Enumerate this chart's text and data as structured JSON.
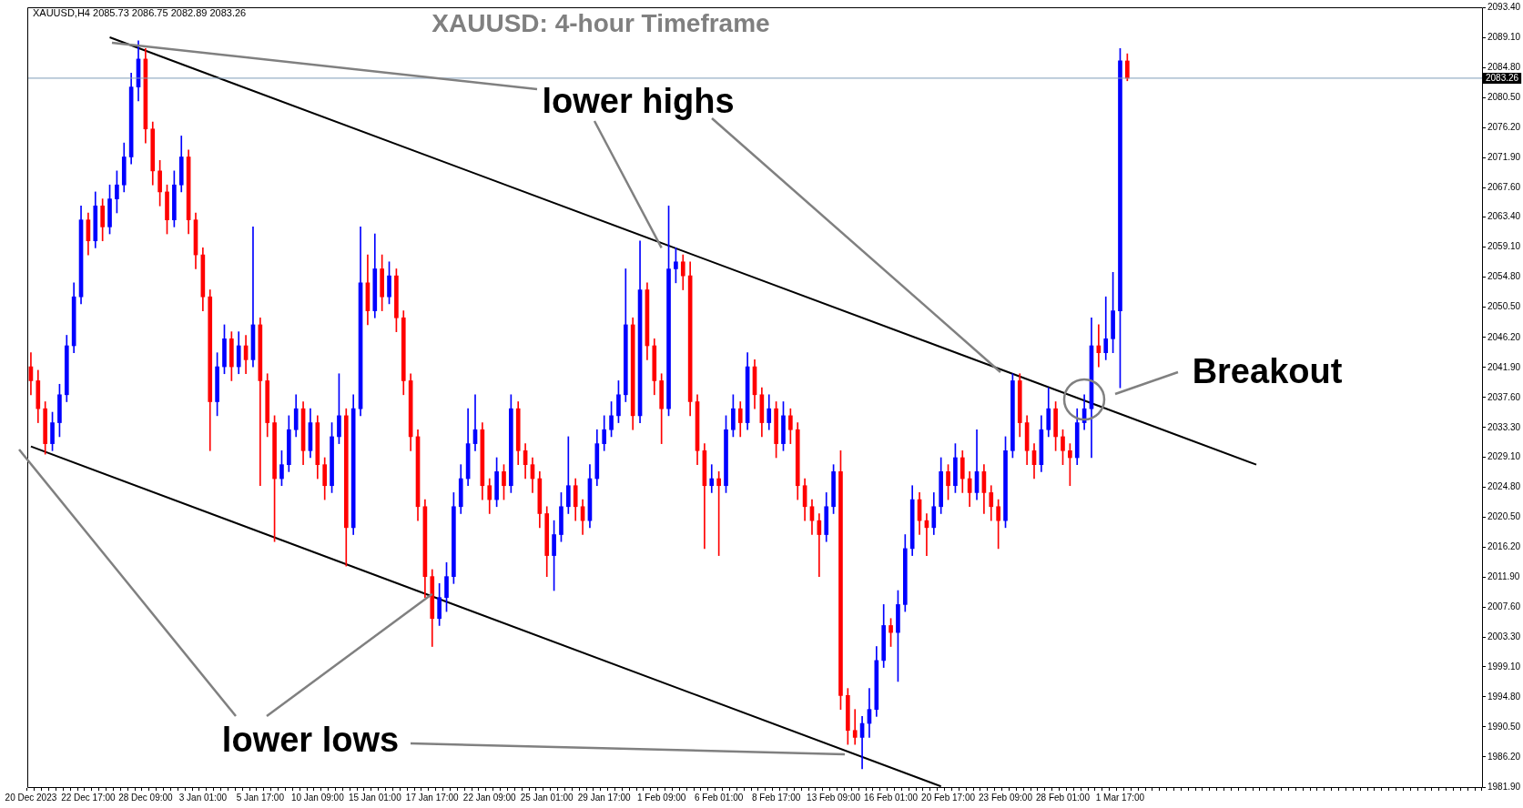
{
  "chart_data": {
    "type": "candlestick",
    "title": "XAUUSD: 4-hour Timeframe",
    "subtitle": "XAUUSD,H4  2085.73 2086.75 2082.89 2083.26",
    "annotations": [
      {
        "text": "lower highs",
        "x": "1 Feb 09:00",
        "y": 2059
      },
      {
        "text": "lower lows",
        "x": "17 Jan 17:00",
        "y": 2009.5
      },
      "Breakout"
    ],
    "categories": [
      "20 Dec 2023",
      null,
      null,
      null,
      null,
      null,
      null,
      null,
      "22 Dec 17:00",
      null,
      null,
      null,
      null,
      null,
      null,
      null,
      "28 Dec 09:00",
      null,
      null,
      null,
      null,
      null,
      null,
      null,
      "3 Jan 01:00",
      null,
      null,
      null,
      null,
      null,
      null,
      null,
      "5 Jan 17:00",
      null,
      null,
      null,
      null,
      null,
      null,
      null,
      "10 Jan 09:00",
      null,
      null,
      null,
      null,
      null,
      null,
      null,
      "15 Jan 01:00",
      null,
      null,
      null,
      null,
      null,
      null,
      null,
      "17 Jan 17:00",
      null,
      null,
      null,
      null,
      null,
      null,
      null,
      "22 Jan 09:00",
      null,
      null,
      null,
      null,
      null,
      null,
      null,
      "25 Jan 01:00",
      null,
      null,
      null,
      null,
      null,
      null,
      null,
      "29 Jan 17:00",
      null,
      null,
      null,
      null,
      null,
      null,
      null,
      "1 Feb 09:00",
      null,
      null,
      null,
      null,
      null,
      null,
      null,
      "6 Feb 01:00",
      null,
      null,
      null,
      null,
      null,
      null,
      null,
      "8 Feb 17:00",
      null,
      null,
      null,
      null,
      null,
      null,
      null,
      "13 Feb 09:00",
      null,
      null,
      null,
      null,
      null,
      null,
      null,
      "16 Feb 01:00",
      null,
      null,
      null,
      null,
      null,
      null,
      null,
      "20 Feb 17:00",
      null,
      null,
      null,
      null,
      null,
      null,
      null,
      "23 Feb 09:00",
      null,
      null,
      null,
      null,
      null,
      null,
      null,
      "28 Feb 01:00",
      null,
      null,
      null,
      null,
      null,
      null,
      null,
      "1 Mar 17:00",
      null,
      null,
      null,
      null,
      null,
      null,
      null,
      null,
      null,
      null,
      null,
      null,
      null,
      null,
      null,
      null,
      null,
      null,
      null,
      null,
      null,
      null,
      null,
      null,
      null,
      null,
      null,
      null,
      null,
      null,
      null,
      null,
      null,
      null,
      null,
      null,
      null,
      null,
      null,
      null,
      null,
      null,
      null,
      null,
      null,
      null,
      null,
      null,
      null,
      null
    ],
    "ohlc": [
      [
        2042,
        2044,
        2038,
        2040
      ],
      [
        2040,
        2041.5,
        2034,
        2036
      ],
      [
        2036,
        2037,
        2029.5,
        2031
      ],
      [
        2031,
        2035.5,
        2030,
        2034
      ],
      [
        2034,
        2039.5,
        2032,
        2038
      ],
      [
        2038,
        2046.5,
        2037,
        2045
      ],
      [
        2045,
        2054,
        2044,
        2052
      ],
      [
        2052,
        2065,
        2051,
        2063
      ],
      [
        2063,
        2064,
        2058,
        2060
      ],
      [
        2060,
        2067,
        2059,
        2065
      ],
      [
        2065,
        2066,
        2060,
        2062
      ],
      [
        2062,
        2068,
        2061,
        2066
      ],
      [
        2066,
        2070,
        2064,
        2068
      ],
      [
        2068,
        2074,
        2067,
        2072
      ],
      [
        2072,
        2084,
        2071,
        2082
      ],
      [
        2082,
        2088.6,
        2080,
        2086
      ],
      [
        2086,
        2087.5,
        2074,
        2076
      ],
      [
        2076,
        2077,
        2068,
        2070
      ],
      [
        2070,
        2071.5,
        2065,
        2067
      ],
      [
        2067,
        2068,
        2061,
        2063
      ],
      [
        2063,
        2070,
        2062,
        2068
      ],
      [
        2068,
        2075,
        2067,
        2072
      ],
      [
        2072,
        2073,
        2061,
        2063
      ],
      [
        2063,
        2064,
        2056,
        2058
      ],
      [
        2058,
        2059,
        2050,
        2052
      ],
      [
        2052,
        2053,
        2030,
        2037
      ],
      [
        2037,
        2044,
        2035,
        2042
      ],
      [
        2042,
        2048,
        2041,
        2046
      ],
      [
        2046,
        2047,
        2040,
        2042
      ],
      [
        2042,
        2047,
        2041,
        2045
      ],
      [
        2045,
        2046.5,
        2041,
        2043
      ],
      [
        2043,
        2062,
        2042,
        2048
      ],
      [
        2048,
        2049,
        2025,
        2040
      ],
      [
        2040,
        2041,
        2032,
        2034
      ],
      [
        2034,
        2035,
        2017,
        2026
      ],
      [
        2026,
        2030,
        2025,
        2028
      ],
      [
        2028,
        2035,
        2027,
        2033
      ],
      [
        2033,
        2038,
        2032,
        2036
      ],
      [
        2036,
        2037,
        2028,
        2030
      ],
      [
        2030,
        2036,
        2029,
        2034
      ],
      [
        2034,
        2035,
        2026,
        2028
      ],
      [
        2028,
        2029,
        2023,
        2025
      ],
      [
        2025,
        2034,
        2024,
        2032
      ],
      [
        2032,
        2041,
        2031,
        2035
      ],
      [
        2035,
        2036,
        2013.5,
        2019
      ],
      [
        2019,
        2038,
        2018,
        2036
      ],
      [
        2036,
        2062,
        2035,
        2054
      ],
      [
        2054,
        2058,
        2048,
        2050
      ],
      [
        2050,
        2061,
        2049,
        2056
      ],
      [
        2056,
        2058,
        2050,
        2052
      ],
      [
        2052,
        2057,
        2051,
        2055
      ],
      [
        2055,
        2056,
        2047,
        2049
      ],
      [
        2049,
        2050,
        2038,
        2040
      ],
      [
        2040,
        2041,
        2030,
        2032
      ],
      [
        2032,
        2033,
        2020,
        2022
      ],
      [
        2022,
        2023,
        2009,
        2012
      ],
      [
        2012,
        2013,
        2002,
        2006
      ],
      [
        2006,
        2011,
        2005,
        2009
      ],
      [
        2009,
        2014,
        2007,
        2012
      ],
      [
        2012,
        2024,
        2011,
        2022
      ],
      [
        2022,
        2028,
        2021,
        2026
      ],
      [
        2026,
        2036,
        2025,
        2031
      ],
      [
        2031,
        2038,
        2030,
        2033
      ],
      [
        2033,
        2034,
        2023,
        2025
      ],
      [
        2025,
        2026,
        2021,
        2023
      ],
      [
        2023,
        2029,
        2022,
        2027
      ],
      [
        2027,
        2028,
        2023,
        2025
      ],
      [
        2025,
        2038,
        2024,
        2036
      ],
      [
        2036,
        2037,
        2028,
        2030
      ],
      [
        2030,
        2031,
        2026,
        2028
      ],
      [
        2028,
        2029,
        2024,
        2026
      ],
      [
        2026,
        2027,
        2019,
        2021
      ],
      [
        2021,
        2022,
        2012,
        2015
      ],
      [
        2015,
        2020,
        2010,
        2018
      ],
      [
        2018,
        2024,
        2017,
        2022
      ],
      [
        2022,
        2032,
        2021,
        2025
      ],
      [
        2025,
        2026,
        2020,
        2022
      ],
      [
        2022,
        2023,
        2018,
        2020
      ],
      [
        2020,
        2028,
        2019,
        2026
      ],
      [
        2026,
        2033,
        2025,
        2031
      ],
      [
        2031,
        2035,
        2030,
        2033
      ],
      [
        2033,
        2037,
        2032,
        2035
      ],
      [
        2035,
        2040,
        2034,
        2038
      ],
      [
        2038,
        2056,
        2037,
        2048
      ],
      [
        2048,
        2049,
        2033,
        2035
      ],
      [
        2035,
        2060,
        2034,
        2053
      ],
      [
        2053,
        2054,
        2043,
        2045
      ],
      [
        2045,
        2046,
        2038,
        2040
      ],
      [
        2040,
        2041,
        2031,
        2036
      ],
      [
        2036,
        2065,
        2035,
        2056
      ],
      [
        2056,
        2059,
        2054,
        2057
      ],
      [
        2057,
        2058,
        2053,
        2055
      ],
      [
        2055,
        2057,
        2035,
        2037
      ],
      [
        2037,
        2038,
        2028,
        2030
      ],
      [
        2030,
        2031,
        2016,
        2025
      ],
      [
        2025,
        2028,
        2024,
        2026
      ],
      [
        2026,
        2027,
        2015,
        2025
      ],
      [
        2025,
        2035,
        2024,
        2033
      ],
      [
        2033,
        2038,
        2032,
        2036
      ],
      [
        2036,
        2037,
        2032,
        2034
      ],
      [
        2034,
        2044,
        2033,
        2042
      ],
      [
        2042,
        2043,
        2036,
        2038
      ],
      [
        2038,
        2039,
        2032,
        2034
      ],
      [
        2034,
        2038,
        2033,
        2036
      ],
      [
        2036,
        2037,
        2029,
        2031
      ],
      [
        2031,
        2037,
        2030,
        2035
      ],
      [
        2035,
        2036,
        2031,
        2033
      ],
      [
        2033,
        2034,
        2023,
        2025
      ],
      [
        2025,
        2026,
        2020,
        2022
      ],
      [
        2022,
        2023,
        2018,
        2020
      ],
      [
        2020,
        2021,
        2012,
        2018
      ],
      [
        2018,
        2024,
        2017,
        2022
      ],
      [
        2022,
        2028,
        2021,
        2027
      ],
      [
        2027,
        2030,
        1993,
        1995
      ],
      [
        1995,
        1996,
        1988,
        1990
      ],
      [
        1990,
        1993,
        1988,
        1989
      ],
      [
        1989,
        1992,
        1984.5,
        1991
      ],
      [
        1991,
        1996,
        1989,
        1993
      ],
      [
        1993,
        2002,
        1992,
        2000
      ],
      [
        2000,
        2008,
        1999,
        2005
      ],
      [
        2005,
        2006,
        2002,
        2004
      ],
      [
        2004,
        2010,
        1997,
        2008
      ],
      [
        2008,
        2018,
        2007,
        2016
      ],
      [
        2016,
        2025,
        2015,
        2023
      ],
      [
        2023,
        2024,
        2018,
        2020
      ],
      [
        2020,
        2021,
        2015,
        2019
      ],
      [
        2019,
        2024,
        2018,
        2022
      ],
      [
        2022,
        2029,
        2021,
        2027
      ],
      [
        2027,
        2028,
        2023,
        2025
      ],
      [
        2025,
        2031,
        2024,
        2029
      ],
      [
        2029,
        2030,
        2024,
        2026
      ],
      [
        2026,
        2027,
        2022,
        2024
      ],
      [
        2024,
        2033,
        2023,
        2027
      ],
      [
        2027,
        2028,
        2021,
        2024
      ],
      [
        2024,
        2025,
        2020,
        2022
      ],
      [
        2022,
        2023,
        2016,
        2020
      ],
      [
        2020,
        2032,
        2019,
        2030
      ],
      [
        2030,
        2041,
        2029,
        2040
      ],
      [
        2040,
        2041,
        2032,
        2034
      ],
      [
        2034,
        2035,
        2028,
        2030
      ],
      [
        2030,
        2031,
        2026,
        2028
      ],
      [
        2028,
        2035,
        2027,
        2033
      ],
      [
        2033,
        2039,
        2032,
        2036
      ],
      [
        2036,
        2037,
        2030,
        2032
      ],
      [
        2032,
        2033,
        2028,
        2030
      ],
      [
        2030,
        2031,
        2025,
        2029
      ],
      [
        2029,
        2036,
        2028,
        2034
      ],
      [
        2034,
        2038,
        2033,
        2036
      ],
      [
        2036,
        2049,
        2029,
        2045
      ],
      [
        2045,
        2048,
        2042,
        2044
      ],
      [
        2044,
        2052,
        2043,
        2046
      ],
      [
        2046,
        2055.5,
        2044,
        2050
      ],
      [
        2050,
        2087.5,
        2039,
        2085.73
      ],
      [
        2085.73,
        2086.75,
        2082.89,
        2083.26
      ],
      null,
      null,
      null,
      null,
      null,
      null,
      null,
      null,
      null,
      null,
      null,
      null,
      null,
      null,
      null,
      null,
      null,
      null,
      null,
      null,
      null,
      null,
      null,
      null,
      null,
      null,
      null,
      null,
      null,
      null,
      null,
      null,
      null,
      null,
      null,
      null,
      null,
      null,
      null,
      null,
      null,
      null,
      null,
      null,
      null,
      null,
      null,
      null,
      null
    ],
    "series": [
      {
        "type": "line",
        "color": "#000000",
        "values": [
          null,
          null,
          null,
          null,
          null,
          null,
          null,
          null,
          null,
          null,
          null,
          2089.1,
          null,
          null,
          null,
          null,
          null,
          null,
          null,
          null,
          null,
          null,
          null,
          null,
          null,
          null,
          null,
          null,
          null,
          null,
          null,
          null,
          null,
          null,
          null,
          null,
          null,
          null,
          null,
          null,
          null,
          null,
          null,
          null,
          null,
          null,
          null,
          null,
          null,
          null,
          null,
          null,
          null,
          null,
          null,
          null,
          null,
          null,
          null,
          null,
          null,
          null,
          null,
          null,
          null,
          null,
          null,
          null,
          null,
          null,
          null,
          null,
          null,
          null,
          null,
          null,
          null,
          null,
          null,
          null,
          null,
          null,
          null,
          null,
          null,
          null,
          null,
          null,
          null,
          null,
          null,
          null,
          null,
          null,
          null,
          null,
          null,
          null,
          null,
          null,
          null,
          null,
          null,
          null,
          null,
          null,
          null,
          null,
          null,
          null,
          null,
          null,
          null,
          null,
          null,
          null,
          null,
          null,
          null,
          null,
          null,
          null,
          null,
          null,
          null,
          null,
          null,
          null,
          null,
          null,
          null,
          null,
          null,
          null,
          null,
          null,
          null,
          null,
          null,
          null,
          null,
          null,
          null,
          null,
          null,
          null,
          null,
          null,
          null,
          null,
          null,
          null,
          null,
          null,
          null,
          null,
          null,
          null,
          null,
          null,
          null,
          null,
          null,
          null,
          null,
          null,
          null,
          null,
          null,
          null,
          null,
          2028.0,
          null,
          null,
          null,
          null,
          null,
          null,
          null,
          null,
          null,
          null,
          null,
          null,
          null,
          null,
          null,
          null,
          null,
          null,
          null,
          null,
          null,
          null,
          null,
          null,
          null,
          null,
          null,
          null,
          null,
          null,
          null
        ]
      },
      {
        "type": "line",
        "color": "#000000",
        "values": [
          2030.6,
          null,
          null,
          null,
          null,
          null,
          null,
          null,
          null,
          null,
          null,
          null,
          null,
          null,
          null,
          null,
          null,
          null,
          null,
          null,
          null,
          null,
          null,
          null,
          null,
          null,
          null,
          null,
          null,
          null,
          null,
          null,
          null,
          null,
          null,
          null,
          null,
          null,
          null,
          null,
          null,
          null,
          null,
          null,
          null,
          null,
          null,
          null,
          null,
          null,
          null,
          null,
          null,
          null,
          null,
          null,
          null,
          null,
          null,
          null,
          null,
          null,
          null,
          null,
          null,
          null,
          null,
          null,
          null,
          null,
          null,
          null,
          null,
          null,
          null,
          null,
          null,
          null,
          null,
          null,
          null,
          null,
          null,
          null,
          null,
          null,
          null,
          null,
          null,
          null,
          null,
          null,
          null,
          null,
          null,
          null,
          null,
          null,
          null,
          null,
          null,
          null,
          null,
          null,
          null,
          null,
          null,
          null,
          null,
          null,
          null,
          null,
          null,
          null,
          null,
          null,
          null,
          null,
          null,
          null,
          null,
          null,
          null,
          null,
          null,
          null,
          null,
          1982.0,
          null,
          null,
          null,
          null,
          null,
          null,
          null,
          null,
          null,
          null,
          null,
          null,
          null,
          null,
          null,
          null,
          null,
          null,
          null,
          null,
          null,
          null,
          null,
          null,
          null,
          null,
          null,
          null,
          null,
          null,
          null,
          null,
          null,
          null,
          null,
          null,
          null,
          null,
          null,
          null,
          null,
          null,
          null,
          null,
          null,
          null,
          null,
          null,
          null,
          null,
          null,
          null,
          null,
          null,
          null,
          null,
          null,
          null,
          null,
          null,
          null,
          null,
          null,
          null,
          null,
          null,
          null,
          null,
          null,
          null,
          null,
          null,
          null,
          null,
          null
        ]
      }
    ],
    "ref_lines": [
      {
        "axis": "y",
        "value": 2083.26,
        "label": "2083.26",
        "color": "#7f9db9"
      }
    ],
    "ylim": [
      1981.9,
      2093.4
    ],
    "yticks": [
      {
        "value": 2093.4,
        "label": "2093.40"
      },
      {
        "value": 2089.1,
        "label": "2089.10"
      },
      {
        "value": 2084.8,
        "label": "2084.80"
      },
      {
        "value": 2080.5,
        "label": "2080.50"
      },
      {
        "value": 2076.2,
        "label": "2076.20"
      },
      {
        "value": 2071.9,
        "label": "2071.90"
      },
      {
        "value": 2067.6,
        "label": "2067.60"
      },
      {
        "value": 2063.4,
        "label": "2063.40"
      },
      {
        "value": 2059.1,
        "label": "2059.10"
      },
      {
        "value": 2054.8,
        "label": "2054.80"
      },
      {
        "value": 2050.5,
        "label": "2050.50"
      },
      {
        "value": 2046.2,
        "label": "2046.20"
      },
      {
        "value": 2041.9,
        "label": "2041.90"
      },
      {
        "value": 2037.6,
        "label": "2037.60"
      },
      {
        "value": 2033.3,
        "label": "2033.30"
      },
      {
        "value": 2029.1,
        "label": "2029.10"
      },
      {
        "value": 2024.8,
        "label": "2024.80"
      },
      {
        "value": 2020.5,
        "label": "2020.50"
      },
      {
        "value": 2016.2,
        "label": "2016.20"
      },
      {
        "value": 2011.9,
        "label": "2011.90"
      },
      {
        "value": 2007.6,
        "label": "2007.60"
      },
      {
        "value": 2003.3,
        "label": "2003.30"
      },
      {
        "value": 1999.1,
        "label": "1999.10"
      },
      {
        "value": 1994.8,
        "label": "1994.80"
      },
      {
        "value": 1990.5,
        "label": "1990.50"
      },
      {
        "value": 1986.2,
        "label": "1986.20"
      },
      {
        "value": 1981.9,
        "label": "1981.90"
      }
    ]
  }
}
